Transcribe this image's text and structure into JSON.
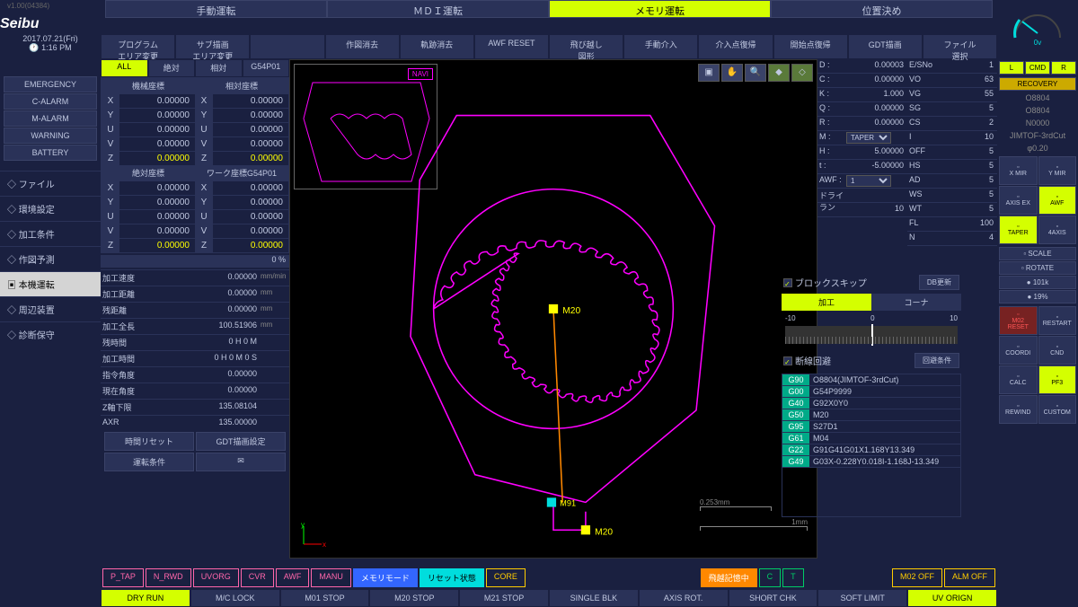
{
  "version": "v1.00(04384)",
  "logo": "Seibu",
  "date": "2017.07.21(Fri)",
  "time": "1:16 PM",
  "mainTabs": [
    "手動運転",
    "ＭＤＩ運転",
    "メモリ運転",
    "位置決め"
  ],
  "mainTabActive": 2,
  "subButtons": [
    "プログラム\nエリア変更",
    "サブ描画\nエリア変更",
    "",
    "作図消去",
    "軌跡消去",
    "AWF RESET",
    "飛び越し\n図形",
    "手動介入",
    "介入点復帰",
    "開始点復帰",
    "GDT描画",
    "ファイル\n選択"
  ],
  "statusButtons": [
    "EMERGENCY",
    "C-ALARM",
    "M-ALARM",
    "WARNING",
    "BATTERY"
  ],
  "navItems": [
    "ファイル",
    "環境設定",
    "加工条件",
    "作図予測",
    "本機運転",
    "周辺装置",
    "診断保守"
  ],
  "navActive": 4,
  "coordTabs": [
    "ALL",
    "絶対",
    "相対",
    "G54P01"
  ],
  "coordTabActive": 0,
  "coordHeaders1": [
    "機械座標",
    "相対座標"
  ],
  "coordHeaders2": [
    "絶対座標",
    "ワーク座標G54P01"
  ],
  "axes": [
    "X",
    "Y",
    "U",
    "V",
    "Z"
  ],
  "machineCoords": [
    "0.00000",
    "0.00000",
    "0.00000",
    "0.00000",
    "0.00000"
  ],
  "relCoords": [
    "0.00000",
    "0.00000",
    "0.00000",
    "0.00000",
    "0.00000"
  ],
  "absCoords": [
    "0.00000",
    "0.00000",
    "0.00000",
    "0.00000",
    "0.00000"
  ],
  "workCoords": [
    "0.00000",
    "0.00000",
    "0.00000",
    "0.00000",
    "0.00000"
  ],
  "progress": "0 %",
  "infoRows": [
    {
      "label": "加工速度",
      "val": "0.00000",
      "unit": "mm/min"
    },
    {
      "label": "加工距離",
      "val": "0.00000",
      "unit": "mm"
    },
    {
      "label": "残距離",
      "val": "0.00000",
      "unit": "mm"
    },
    {
      "label": "加工全長",
      "val": "100.51906",
      "unit": "mm"
    },
    {
      "label": "残時間",
      "val": "0 H  0  M",
      "unit": ""
    },
    {
      "label": "加工時間",
      "val": "0 H  0 M  0 S",
      "unit": ""
    },
    {
      "label": "指令角度",
      "val": "0.00000",
      "unit": ""
    },
    {
      "label": "現在角度",
      "val": "0.00000",
      "unit": ""
    },
    {
      "label": "Z軸下限",
      "val": "135.08104",
      "unit": ""
    },
    {
      "label": "AXR",
      "val": "135.00000",
      "unit": ""
    }
  ],
  "actionBtns": [
    "時間リセット",
    "GDT描画設定",
    "運転条件",
    "✉"
  ],
  "naviLabel": "NAVI",
  "scaleSmall": "0.253mm",
  "scaleLarge": "1mm",
  "params1": [
    {
      "l": "D :",
      "v": "0.00003"
    },
    {
      "l": "C :",
      "v": "0.00000"
    },
    {
      "l": "K :",
      "v": "1.000"
    },
    {
      "l": "Q :",
      "v": "0.00000"
    },
    {
      "l": "R :",
      "v": "0.00000"
    },
    {
      "l": "M :",
      "v": "TAPER",
      "sel": true
    },
    {
      "l": "H :",
      "v": "5.00000"
    },
    {
      "l": "t :",
      "v": "-5.00000"
    },
    {
      "l": "AWF :",
      "v": "1",
      "sel": true
    },
    {
      "l": "ドライラン",
      "v": ""
    },
    {
      "l": "",
      "v": "10"
    }
  ],
  "params2": [
    {
      "l": "E/SNo",
      "v": "1"
    },
    {
      "l": "VO",
      "v": "63"
    },
    {
      "l": "VG",
      "v": "55"
    },
    {
      "l": "SG",
      "v": "5"
    },
    {
      "l": "CS",
      "v": "2"
    },
    {
      "l": "I",
      "v": "10"
    },
    {
      "l": "OFF",
      "v": "5"
    },
    {
      "l": "HS",
      "v": "5"
    },
    {
      "l": "AD",
      "v": "5"
    },
    {
      "l": "WS",
      "v": "5"
    },
    {
      "l": "WT",
      "v": "5"
    },
    {
      "l": "FL",
      "v": "100"
    },
    {
      "l": "N",
      "v": "4"
    }
  ],
  "blockSkip": "ブロックスキップ",
  "dbUpdate": "DB更新",
  "modeTabs": [
    "加工",
    "コーナ"
  ],
  "modeActive": 0,
  "sliderLabels": [
    "-10",
    "0",
    "10"
  ],
  "dashAvoid": "断線回避",
  "avoidCond": "回避条件",
  "gcodes": [
    {
      "c": "G90",
      "t": "O8804(JIMTOF-3rdCut)"
    },
    {
      "c": "G00",
      "t": "G54P9999"
    },
    {
      "c": "G40",
      "t": "G92X0Y0"
    },
    {
      "c": "G50",
      "t": "M20"
    },
    {
      "c": "G95",
      "t": "S27D1"
    },
    {
      "c": "G61",
      "t": "M04"
    },
    {
      "c": "G22",
      "t": "G91G41G01X1.168Y13.349"
    },
    {
      "c": "G49",
      "t": "G03X-0.228Y0.018I-1.168J-13.349"
    }
  ],
  "gaugeVal": "0v",
  "cmdBtns": [
    "L",
    "CMD",
    "R"
  ],
  "recovery": "RECOVERY",
  "frInfo": [
    "O8804",
    "O8804",
    "N0000",
    "JIMTOF-3rdCut",
    "φ0.20"
  ],
  "iconBtns": [
    {
      "t": "X MIR"
    },
    {
      "t": "Y MIR"
    },
    {
      "t": "AXIS EX"
    },
    {
      "t": "AWF",
      "a": true
    },
    {
      "t": "TAPER",
      "a": true
    },
    {
      "t": "4AXIS"
    }
  ],
  "scaleBtns": [
    "SCALE",
    "ROTATE"
  ],
  "statBtns": [
    {
      "t": "101k"
    },
    {
      "t": "19%"
    }
  ],
  "bigBtns": [
    {
      "t": "M02\nRESET",
      "red": true
    },
    {
      "t": "RESTART"
    },
    {
      "t": "COORDI"
    },
    {
      "t": "CND"
    },
    {
      "t": "CALC"
    },
    {
      "t": "PF3",
      "orange": true
    },
    {
      "t": "REWIND"
    },
    {
      "t": "CUSTOM"
    }
  ],
  "botRow1": [
    {
      "t": "P_TAP",
      "c": "pink"
    },
    {
      "t": "N_RWD",
      "c": "pink"
    },
    {
      "t": "UVORG",
      "c": "pink"
    },
    {
      "t": "CVR",
      "c": "pink"
    },
    {
      "t": "AWF",
      "c": "pink"
    },
    {
      "t": "MANU",
      "c": "pink"
    },
    {
      "t": "メモリモード",
      "c": "blue"
    },
    {
      "t": "リセット状態",
      "c": "cyan"
    },
    {
      "t": "CORE",
      "c": "yellow"
    },
    {
      "t": "飛越記憶中",
      "c": "orange"
    },
    {
      "t": "C",
      "c": "green"
    },
    {
      "t": "T",
      "c": "green"
    },
    {
      "t": "M02 OFF",
      "c": "yellow"
    },
    {
      "t": "ALM OFF",
      "c": "yellow"
    }
  ],
  "toggleRow": [
    "DRY RUN",
    "M/C LOCK",
    "M01 STOP",
    "M20 STOP",
    "M21 STOP",
    "SINGLE BLK",
    "AXIS ROT.",
    "SHORT CHK",
    "SOFT LIMIT",
    "UV ORIGN"
  ],
  "toggleActive": [
    0,
    9
  ],
  "gearColor": "#ff00ff",
  "canvasLabels": {
    "m20a": "M20",
    "m20b": "M20",
    "m91": "M91"
  }
}
